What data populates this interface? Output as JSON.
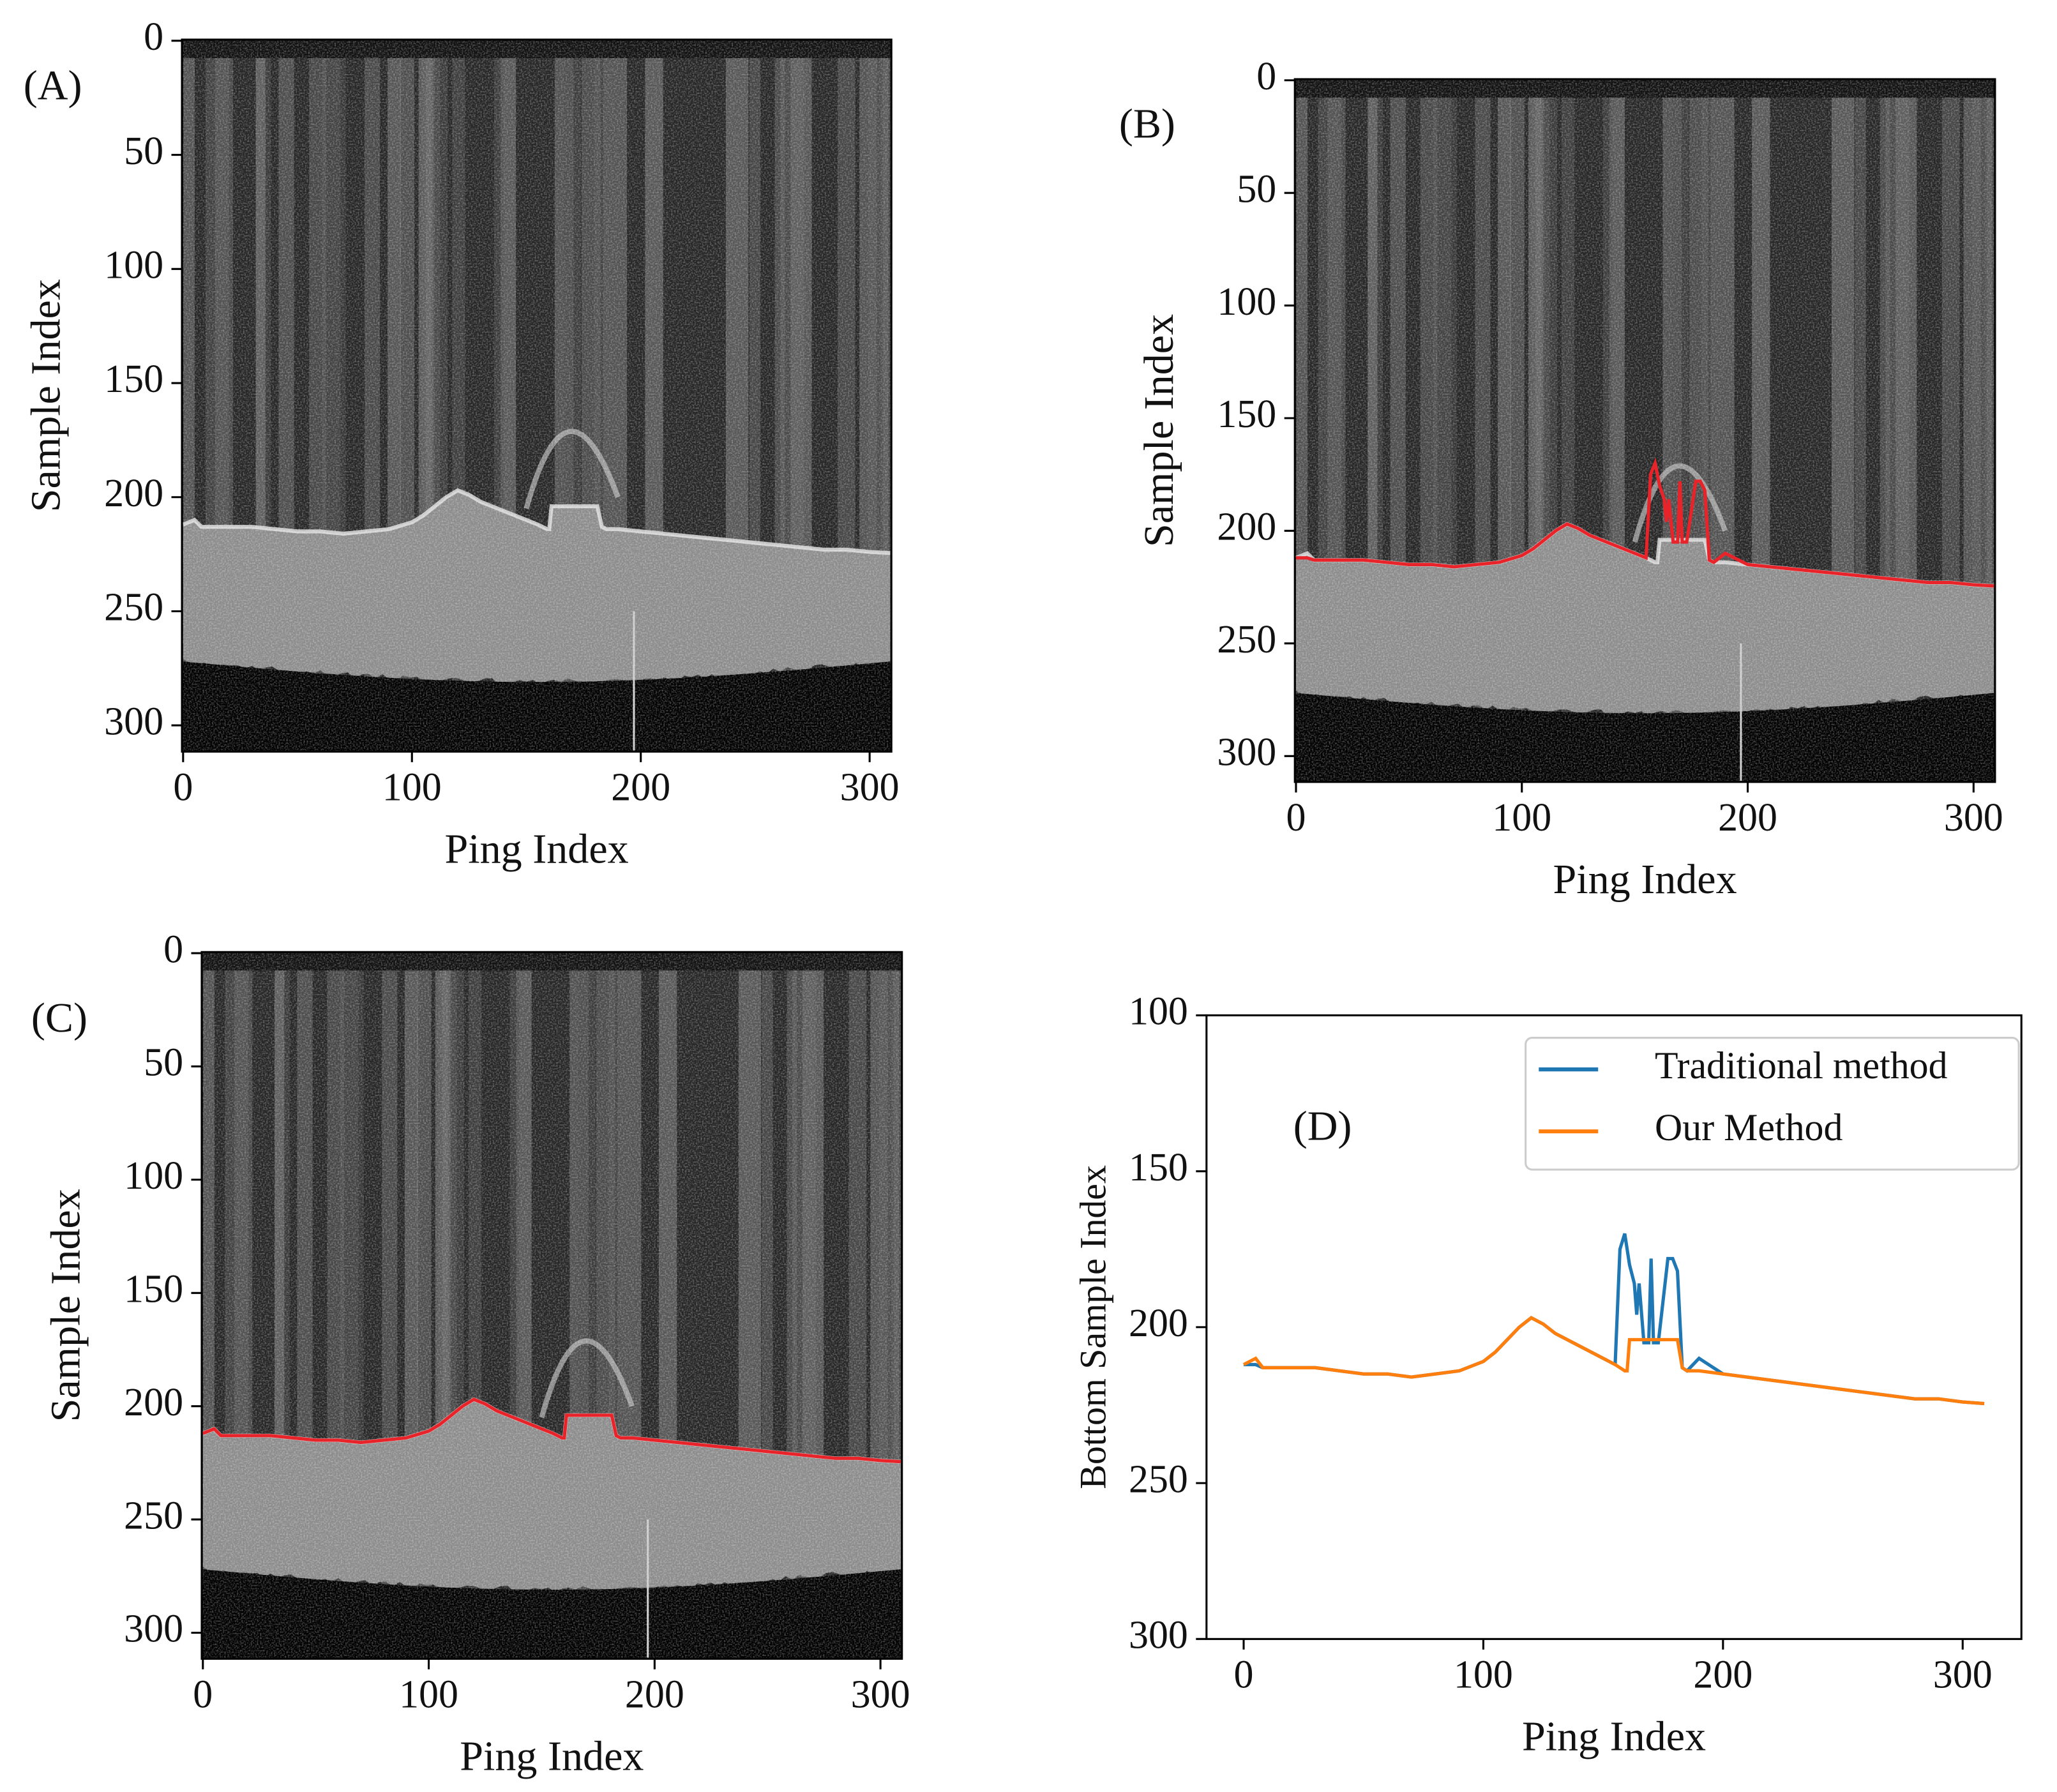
{
  "chart_data": [
    {
      "type": "image",
      "panel_label": "(A)",
      "xlabel": "Ping Index",
      "ylabel": "Sample Index",
      "xlim": [
        -0.5,
        309.5
      ],
      "ylim": [
        311.5,
        -0.5
      ],
      "xticks": [
        0,
        100,
        200,
        300
      ],
      "yticks": [
        0,
        50,
        100,
        150,
        200,
        250,
        300
      ]
    },
    {
      "type": "image",
      "panel_label": "(B)",
      "xlabel": "Ping Index",
      "ylabel": "Sample Index",
      "xlim": [
        -0.5,
        309.5
      ],
      "ylim": [
        311.5,
        -0.5
      ],
      "xticks": [
        0,
        100,
        200,
        300
      ],
      "yticks": [
        0,
        50,
        100,
        150,
        200,
        250,
        300
      ],
      "overlay_series": 0,
      "overlay_color": "#e8242a"
    },
    {
      "type": "image",
      "panel_label": "(C)",
      "xlabel": "Ping Index",
      "ylabel": "Sample Index",
      "xlim": [
        -0.5,
        309.5
      ],
      "ylim": [
        311.5,
        -0.5
      ],
      "xticks": [
        0,
        100,
        200,
        300
      ],
      "yticks": [
        0,
        50,
        100,
        150,
        200,
        250,
        300
      ],
      "overlay_series": 1,
      "overlay_color": "#e8242a"
    },
    {
      "type": "line",
      "panel_label": "(D)",
      "xlabel": "Ping Index",
      "ylabel": "Bottom Sample Index",
      "xlim": [
        -15.5,
        324.5
      ],
      "ylim": [
        300,
        100
      ],
      "xticks": [
        0,
        100,
        200,
        300
      ],
      "yticks": [
        100,
        150,
        200,
        250,
        300
      ],
      "legend": "upper right",
      "x": [
        0,
        5,
        8,
        10,
        20,
        30,
        40,
        50,
        60,
        70,
        80,
        90,
        100,
        105,
        110,
        115,
        120,
        125,
        130,
        140,
        150,
        155,
        157,
        159,
        160,
        161,
        163,
        164,
        165,
        167,
        169,
        170,
        171,
        173,
        177,
        179,
        181,
        183,
        185,
        190,
        200,
        210,
        220,
        230,
        240,
        250,
        260,
        270,
        280,
        290,
        300,
        309
      ],
      "series": [
        {
          "name": "Traditional method",
          "color": "#1f77b4",
          "values": [
            212,
            212,
            213,
            213,
            213,
            213,
            214,
            215,
            215,
            216,
            215,
            214,
            211,
            208,
            204,
            200,
            197,
            199,
            202,
            206,
            210,
            212,
            175,
            170,
            175,
            180,
            186,
            196,
            186,
            205,
            205,
            178,
            205,
            205,
            178,
            178,
            182,
            213,
            214,
            210,
            215,
            216,
            217,
            218,
            219,
            220,
            221,
            222,
            223,
            223,
            224,
            224.5
          ]
        },
        {
          "name": "Our Method",
          "color": "#ff7f0e",
          "values": [
            212,
            210,
            213,
            213,
            213,
            213,
            214,
            215,
            215,
            216,
            215,
            214,
            211,
            208,
            204,
            200,
            197,
            199,
            202,
            206,
            210,
            212,
            213,
            214,
            214,
            204,
            204,
            204,
            204,
            204,
            204,
            204,
            204,
            204,
            204,
            204,
            204,
            213,
            214,
            214,
            215,
            216,
            217,
            218,
            219,
            220,
            221,
            222,
            223,
            223,
            224,
            224.5
          ]
        }
      ]
    }
  ]
}
